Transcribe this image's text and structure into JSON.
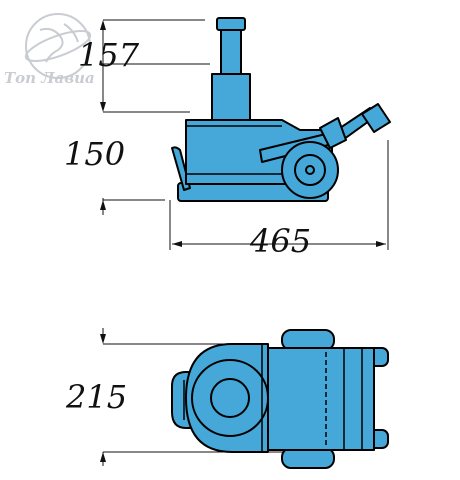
{
  "logo": {
    "text": "Топ Лавиа",
    "icon": "globe-icon"
  },
  "dimensions": {
    "lift_height": "157",
    "min_height": "150",
    "length": "465",
    "width": "215"
  },
  "colors": {
    "body": "#45a8d8",
    "outline": "#000000",
    "line": "#111111"
  }
}
